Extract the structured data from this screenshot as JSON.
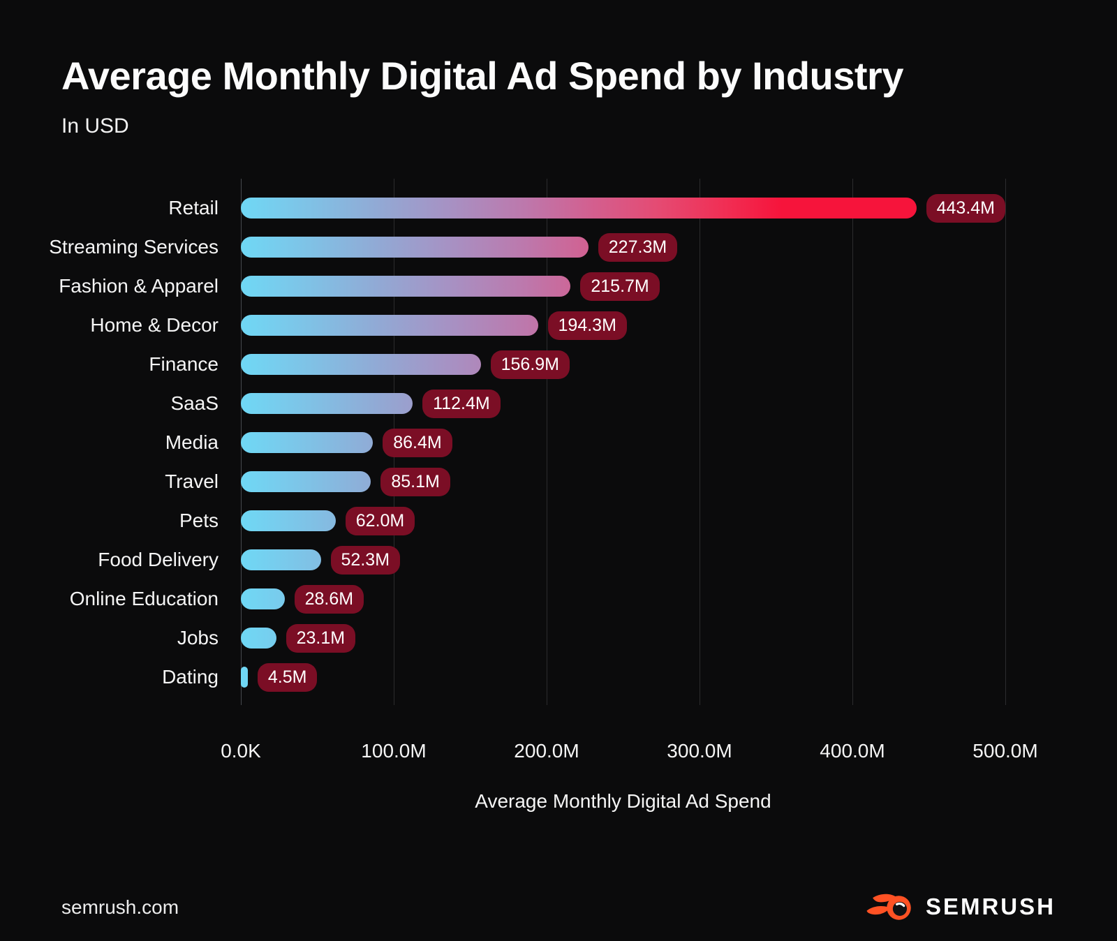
{
  "title": "Average Monthly Digital Ad Spend by Industry",
  "subtitle": "In USD",
  "chart_data": {
    "type": "bar",
    "orientation": "horizontal",
    "title": "Average Monthly Digital Ad Spend by Industry",
    "subtitle": "In USD",
    "xlabel": "Average Monthly Digital Ad Spend",
    "ylabel": "",
    "unit": "USD millions",
    "xlim": [
      0,
      500
    ],
    "x_tick_labels": [
      "0.0K",
      "100.0M",
      "200.0M",
      "300.0M",
      "400.0M",
      "500.0M"
    ],
    "x_tick_values": [
      0,
      100,
      200,
      300,
      400,
      500
    ],
    "grid": "vertical",
    "categories": [
      "Retail",
      "Streaming Services",
      "Fashion & Apparel",
      "Home & Decor",
      "Finance",
      "SaaS",
      "Media",
      "Travel",
      "Pets",
      "Food Delivery",
      "Online Education",
      "Jobs",
      "Dating"
    ],
    "values": [
      443.4,
      227.3,
      215.7,
      194.3,
      156.9,
      112.4,
      86.4,
      85.1,
      62.0,
      52.3,
      28.6,
      23.1,
      4.5
    ],
    "value_labels": [
      "443.4M",
      "227.3M",
      "215.7M",
      "194.3M",
      "156.9M",
      "112.4M",
      "86.4M",
      "85.1M",
      "62.0M",
      "52.3M",
      "28.6M",
      "23.1M",
      "4.5M"
    ]
  },
  "colors": {
    "background": "#0b0b0c",
    "bar_gradient_start": "#6fd8f5",
    "bar_gradient_end": "#f6143b",
    "value_pill_background": "#7b0e25",
    "value_pill_text": "#ffffff",
    "gridline": "#2c2c2e",
    "axis_line": "#46494e",
    "text": "#f5f5f5",
    "brand_orange": "#ff5224"
  },
  "footer": {
    "site": "semrush.com",
    "brand": "SEMRUSH"
  }
}
